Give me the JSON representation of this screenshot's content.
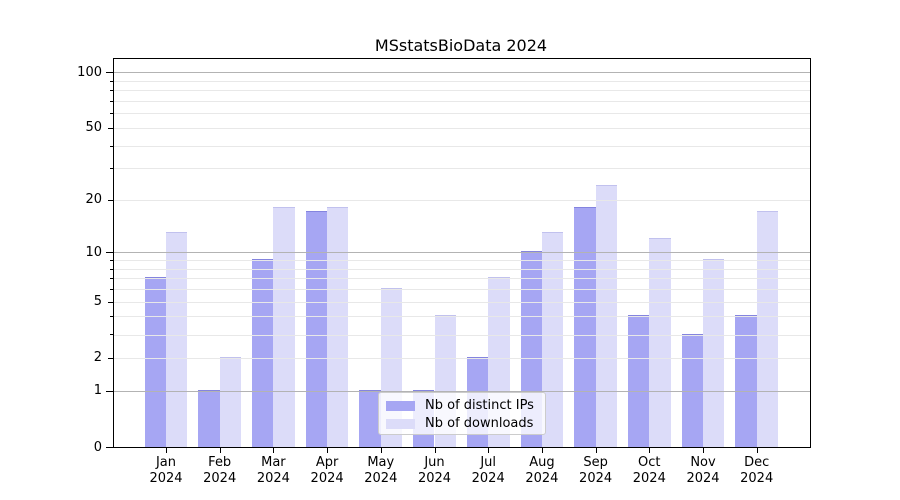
{
  "title": "MSstatsBioData 2024",
  "colors": {
    "background": "#ffffff",
    "ips_bar": "#a6a6f3",
    "downloads_bar": "#dcdcf9",
    "major_grid": "#b3b3b3",
    "minor_grid": "#e8e8e8",
    "axis": "#000000",
    "legend_border": "#cccccc"
  },
  "legend": {
    "items": [
      {
        "label": "Nb of distinct IPs",
        "color_key": "ips_bar"
      },
      {
        "label": "Nb of downloads",
        "color_key": "downloads_bar"
      }
    ]
  },
  "chart_data": {
    "type": "bar",
    "title": "MSstatsBioData 2024",
    "categories": [
      "Jan 2024",
      "Feb 2024",
      "Mar 2024",
      "Apr 2024",
      "May 2024",
      "Jun 2024",
      "Jul 2024",
      "Aug 2024",
      "Sep 2024",
      "Oct 2024",
      "Nov 2024",
      "Dec 2024"
    ],
    "series": [
      {
        "name": "Nb of distinct IPs",
        "color": "#a6a6f3",
        "values": [
          7,
          1,
          9,
          17,
          1,
          1,
          2,
          10,
          18,
          4,
          3,
          4
        ]
      },
      {
        "name": "Nb of downloads",
        "color": "#dcdcf9",
        "values": [
          13,
          2,
          18,
          18,
          6,
          4,
          7,
          13,
          24,
          12,
          9,
          17
        ]
      }
    ],
    "xlabel": "",
    "ylabel": "",
    "yscale": "log1p",
    "ylim": [
      0,
      118
    ],
    "y_tick_labels": [
      0,
      1,
      2,
      5,
      10,
      20,
      50,
      100
    ],
    "y_decade_gridlines": [
      1,
      10,
      100
    ],
    "y_light_gridlines": [
      2,
      3,
      4,
      5,
      6,
      7,
      8,
      9,
      20,
      30,
      40,
      50,
      60,
      70,
      80,
      90
    ],
    "grid": true,
    "legend_position": "lower center"
  }
}
